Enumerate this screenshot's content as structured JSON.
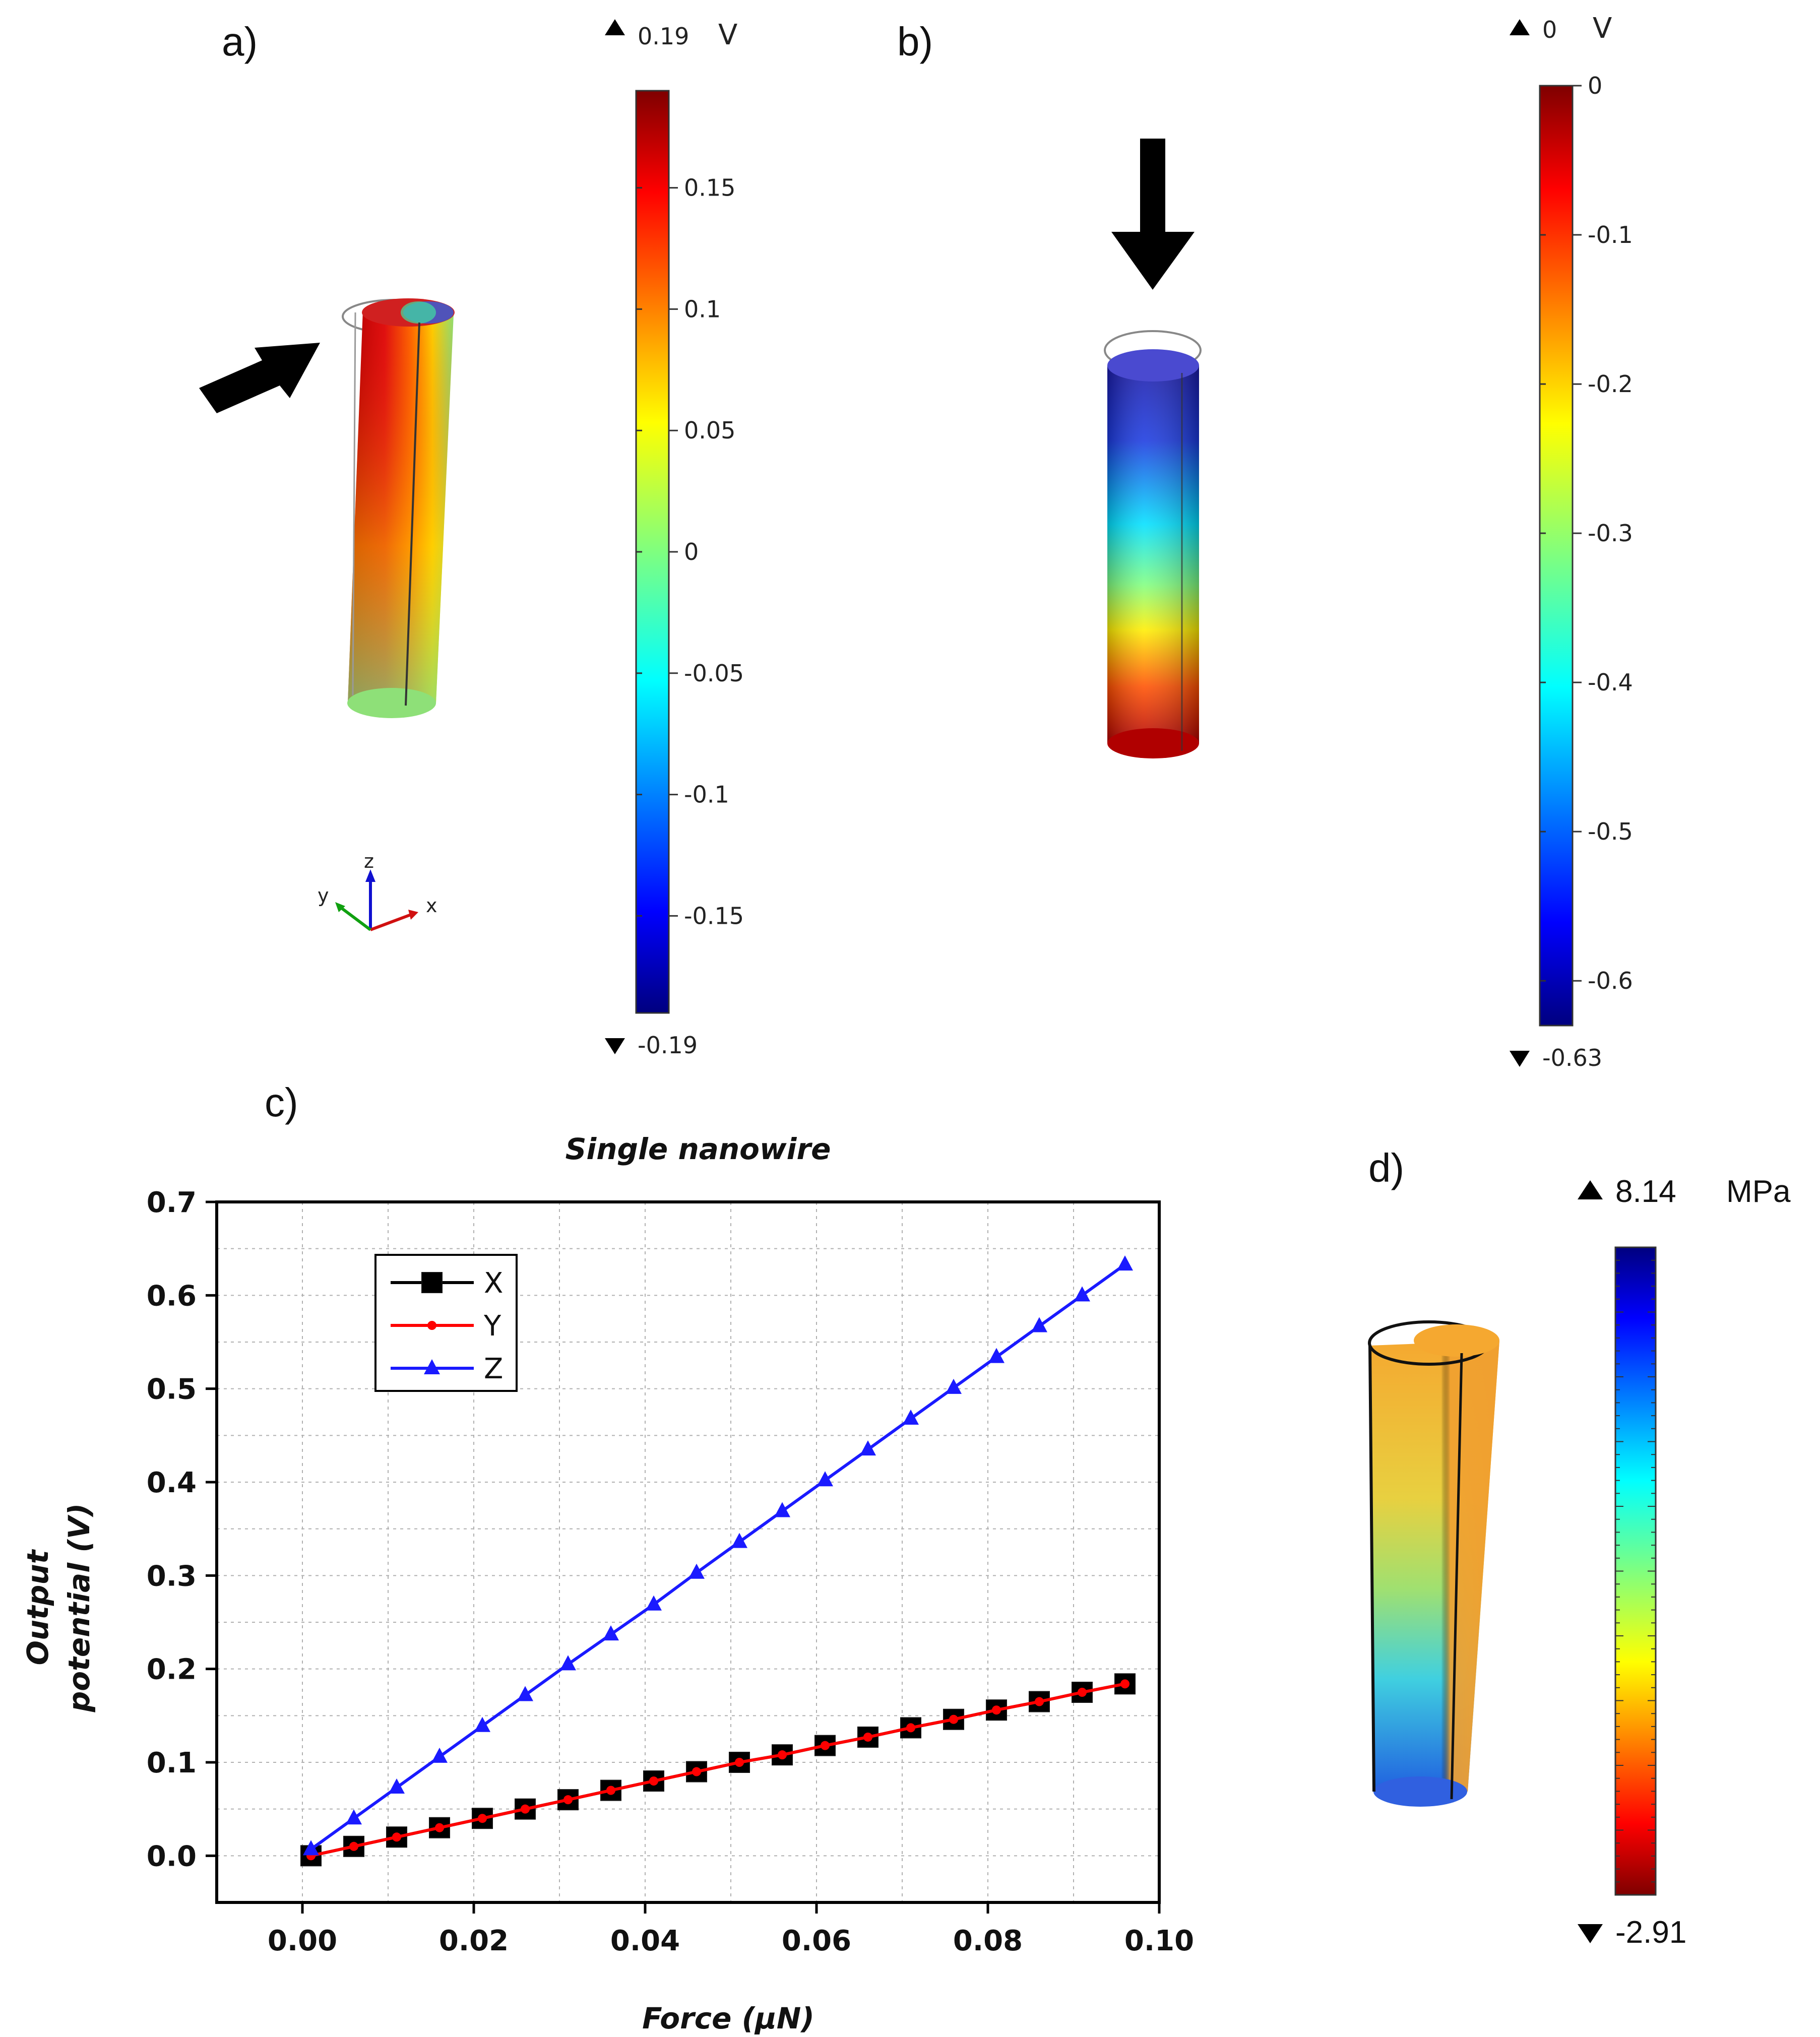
{
  "panels": {
    "a": {
      "label": "a)",
      "colorbar": {
        "max_label": "0.19",
        "min_label": "-0.19",
        "unit": "V",
        "ticks": [
          "0.15",
          "0.1",
          "0.05",
          "0",
          "-0.05",
          "-0.1",
          "-0.15"
        ],
        "tick_values": [
          0.15,
          0.1,
          0.05,
          0,
          -0.05,
          -0.1,
          -0.15
        ],
        "range": [
          -0.19,
          0.19
        ]
      },
      "triad": {
        "x": "x",
        "y": "y",
        "z": "z"
      }
    },
    "b": {
      "label": "b)",
      "colorbar": {
        "max_label": "0",
        "min_label": "-0.63",
        "unit": "V",
        "ticks": [
          "0",
          "-0.1",
          "-0.2",
          "-0.3",
          "-0.4",
          "-0.5",
          "-0.6"
        ],
        "tick_values": [
          0,
          -0.1,
          -0.2,
          -0.3,
          -0.4,
          -0.5,
          -0.6
        ],
        "range": [
          -0.63,
          0
        ]
      }
    },
    "c": {
      "label": "c)"
    },
    "d": {
      "label": "d)",
      "colorbar": {
        "max_label": "8.14",
        "min_label": "-2.91",
        "unit": "MPa"
      }
    }
  },
  "colors": {
    "x_series": "#000000",
    "y_series": "#ff0000",
    "z_series": "#1a1aff",
    "grid": "#b0b0b0"
  },
  "chart_data": {
    "type": "line",
    "title": "Single nanowire",
    "xlabel": "Force (μN)",
    "ylabel_line1": "Output",
    "ylabel_line2": "potential (V)",
    "xlim": [
      -0.01,
      0.1
    ],
    "ylim": [
      -0.05,
      0.7
    ],
    "x_ticks": [
      "0.00",
      "0.02",
      "0.04",
      "0.06",
      "0.08",
      "0.10"
    ],
    "y_ticks": [
      "0.0",
      "0.1",
      "0.2",
      "0.3",
      "0.4",
      "0.5",
      "0.6",
      "0.7"
    ],
    "x": [
      0.001,
      0.006,
      0.011,
      0.016,
      0.021,
      0.026,
      0.031,
      0.036,
      0.041,
      0.046,
      0.051,
      0.056,
      0.061,
      0.066,
      0.071,
      0.076,
      0.081,
      0.086,
      0.091,
      0.096
    ],
    "series": [
      {
        "name": "X",
        "marker": "square",
        "values": [
          0.0,
          0.01,
          0.02,
          0.03,
          0.04,
          0.05,
          0.06,
          0.07,
          0.08,
          0.09,
          0.1,
          0.108,
          0.118,
          0.127,
          0.137,
          0.146,
          0.156,
          0.165,
          0.175,
          0.184
        ]
      },
      {
        "name": "Y",
        "marker": "dot",
        "values": [
          0.0,
          0.01,
          0.02,
          0.03,
          0.04,
          0.05,
          0.06,
          0.07,
          0.08,
          0.09,
          0.1,
          0.108,
          0.118,
          0.127,
          0.137,
          0.146,
          0.156,
          0.165,
          0.175,
          0.184
        ]
      },
      {
        "name": "Z",
        "marker": "triangle",
        "values": [
          0.007,
          0.04,
          0.073,
          0.106,
          0.139,
          0.172,
          0.205,
          0.237,
          0.269,
          0.303,
          0.336,
          0.369,
          0.402,
          0.435,
          0.468,
          0.501,
          0.534,
          0.567,
          0.6,
          0.633
        ]
      }
    ],
    "legend_position": "top-left"
  }
}
